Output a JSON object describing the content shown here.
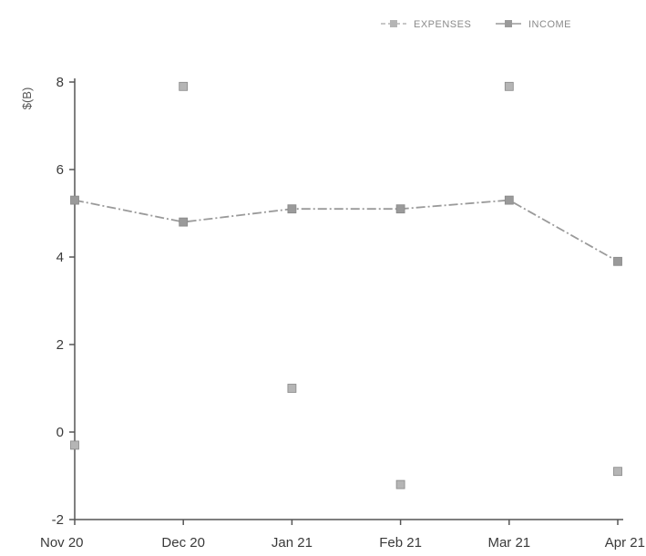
{
  "chart_data": {
    "type": "line",
    "title": "",
    "xlabel": "",
    "ylabel": "$(B)",
    "categories": [
      "Nov 20",
      "Dec 20",
      "Jan 21",
      "Feb 21",
      "Mar 21",
      "Apr 21"
    ],
    "ylim": [
      -2,
      8
    ],
    "yticks": [
      -2,
      0,
      2,
      4,
      6,
      8
    ],
    "grid": false,
    "legend_position": "top-right",
    "series": [
      {
        "name": "EXPENSES",
        "values": [
          -0.3,
          7.9,
          1.0,
          -1.2,
          7.9,
          -0.9
        ],
        "color": "#b5b5b5",
        "dashed": true
      },
      {
        "name": "INCOME",
        "values": [
          5.3,
          4.8,
          5.1,
          5.1,
          5.3,
          3.9
        ],
        "color": "#9a9a9a",
        "dashed": false
      }
    ]
  }
}
